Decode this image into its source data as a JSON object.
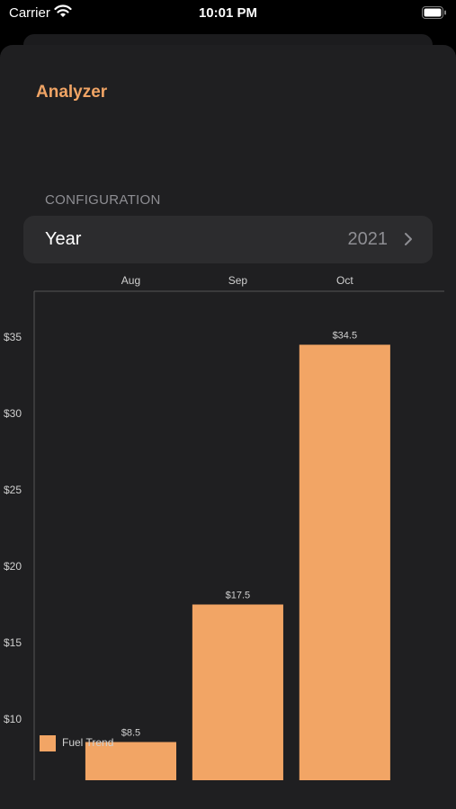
{
  "status_bar": {
    "carrier": "Carrier",
    "time": "10:01 PM"
  },
  "header": {
    "title": "Analyzer"
  },
  "configuration": {
    "section_title": "CONFIGURATION",
    "year_label": "Year",
    "year_value": "2021"
  },
  "colors": {
    "accent": "#f0a465",
    "bar": "#f2a565",
    "background": "#1f1f21",
    "row_background": "#2c2c2e"
  },
  "chart_data": {
    "type": "bar",
    "categories": [
      "Aug",
      "Sep",
      "Oct"
    ],
    "series": [
      {
        "name": "Fuel Trend",
        "values": [
          8.5,
          17.5,
          34.5
        ]
      }
    ],
    "data_labels": [
      "$8.5",
      "$17.5",
      "$34.5"
    ],
    "y_ticks": [
      "$10",
      "$15",
      "$20",
      "$25",
      "$30",
      "$35"
    ],
    "y_tick_values": [
      10,
      15,
      20,
      25,
      30,
      35
    ],
    "ylim": [
      6,
      38
    ],
    "x_axis_position": "top",
    "legend_position": "bottom-left",
    "grid": false
  }
}
